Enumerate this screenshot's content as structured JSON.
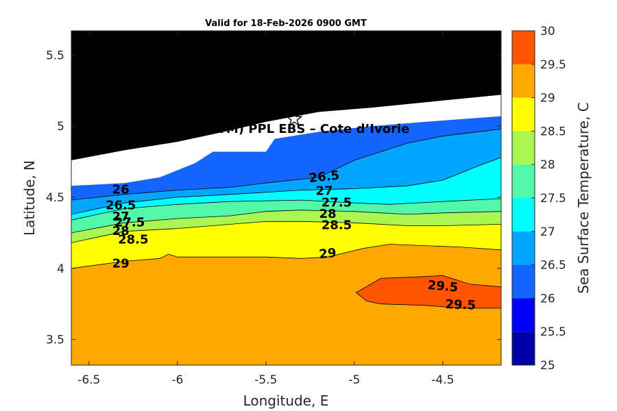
{
  "chart_data": {
    "type": "contour",
    "title": "Valid for 18-Feb-2026 0900 GMT",
    "xlabel": "Longitude, E",
    "ylabel": "Latitude, N",
    "xlim": [
      -6.6,
      -4.17
    ],
    "ylim": [
      3.32,
      5.67
    ],
    "xticks": [
      "-6.5",
      "-6",
      "-5.5",
      "-5",
      "-4.5"
    ],
    "xtick_values": [
      -6.5,
      -6,
      -5.5,
      -5,
      -4.5
    ],
    "yticks": [
      "3.5",
      "4",
      "4.5",
      "5",
      "5.5"
    ],
    "ytick_values": [
      3.5,
      4,
      4.5,
      5,
      5.5
    ],
    "site_label": "A (ONHYM) PPL EBS  – Cote d’Ivorie",
    "site_marker": {
      "lon": -5.34,
      "lat": 5.05,
      "symbol": "star"
    },
    "colorbar": {
      "label": "Sea Surface Temperature, C",
      "levels": [
        25,
        25.5,
        26,
        26.5,
        27,
        27.5,
        28,
        28.5,
        29,
        29.5,
        30
      ],
      "tick_labels": [
        "25",
        "25.5",
        "26",
        "26.5",
        "27",
        "27.5",
        "28",
        "28.5",
        "29",
        "29.5",
        "30"
      ],
      "colors": [
        "#0000a8",
        "#0000fa",
        "#1464ff",
        "#00a6ff",
        "#00ffff",
        "#52f7aa",
        "#aaf552",
        "#ffff00",
        "#ffa800",
        "#ff5500"
      ]
    },
    "land_color": "#000000",
    "land_boundary": [
      [
        -6.6,
        4.76
      ],
      [
        -6.3,
        4.83
      ],
      [
        -6.0,
        4.89
      ],
      [
        -5.7,
        4.97
      ],
      [
        -5.5,
        5.03
      ],
      [
        -5.2,
        5.1
      ],
      [
        -4.9,
        5.13
      ],
      [
        -4.5,
        5.18
      ],
      [
        -4.17,
        5.22
      ]
    ],
    "bands": [
      {
        "level": "26",
        "color": "#1464ff",
        "top": [
          [
            -6.6,
            4.58
          ],
          [
            -6.3,
            4.6
          ],
          [
            -6.1,
            4.64
          ],
          [
            -5.9,
            4.74
          ],
          [
            -5.8,
            4.82
          ],
          [
            -5.5,
            4.82
          ],
          [
            -5.45,
            4.91
          ],
          [
            -5.2,
            4.96
          ],
          [
            -4.9,
            5.0
          ],
          [
            -4.6,
            5.03
          ],
          [
            -4.17,
            5.07
          ]
        ]
      },
      {
        "level": "26.5",
        "color": "#00a6ff",
        "top": [
          [
            -6.6,
            4.48
          ],
          [
            -6.3,
            4.52
          ],
          [
            -6.0,
            4.55
          ],
          [
            -5.7,
            4.57
          ],
          [
            -5.5,
            4.6
          ],
          [
            -5.2,
            4.64
          ],
          [
            -5.0,
            4.76
          ],
          [
            -4.7,
            4.88
          ],
          [
            -4.5,
            4.93
          ],
          [
            -4.17,
            4.98
          ]
        ]
      },
      {
        "level": "27",
        "color": "#00ffff",
        "top": [
          [
            -6.6,
            4.38
          ],
          [
            -6.3,
            4.46
          ],
          [
            -6.0,
            4.5
          ],
          [
            -5.7,
            4.52
          ],
          [
            -5.3,
            4.55
          ],
          [
            -5.0,
            4.56
          ],
          [
            -4.7,
            4.58
          ],
          [
            -4.5,
            4.62
          ],
          [
            -4.3,
            4.72
          ],
          [
            -4.17,
            4.78
          ]
        ]
      },
      {
        "level": "27.5",
        "color": "#52f7aa",
        "top": [
          [
            -6.6,
            4.34
          ],
          [
            -6.3,
            4.42
          ],
          [
            -6.0,
            4.45
          ],
          [
            -5.7,
            4.47
          ],
          [
            -5.3,
            4.48
          ],
          [
            -5.0,
            4.46
          ],
          [
            -4.8,
            4.45
          ],
          [
            -4.5,
            4.47
          ],
          [
            -4.17,
            4.49
          ]
        ]
      },
      {
        "level": "28",
        "color": "#aaf552",
        "top": [
          [
            -6.6,
            4.25
          ],
          [
            -6.3,
            4.32
          ],
          [
            -6.0,
            4.35
          ],
          [
            -5.7,
            4.37
          ],
          [
            -5.5,
            4.4
          ],
          [
            -5.3,
            4.41
          ],
          [
            -5.0,
            4.4
          ],
          [
            -4.7,
            4.38
          ],
          [
            -4.5,
            4.39
          ],
          [
            -4.17,
            4.4
          ]
        ]
      },
      {
        "level": "28.5",
        "color": "#ffff00",
        "top": [
          [
            -6.6,
            4.18
          ],
          [
            -6.3,
            4.26
          ],
          [
            -6.0,
            4.28
          ],
          [
            -5.7,
            4.31
          ],
          [
            -5.5,
            4.33
          ],
          [
            -5.3,
            4.33
          ],
          [
            -5.0,
            4.32
          ],
          [
            -4.7,
            4.3
          ],
          [
            -4.5,
            4.3
          ],
          [
            -4.17,
            4.31
          ]
        ]
      },
      {
        "level": "29",
        "color": "#ffa800",
        "top": [
          [
            -6.6,
            4.0
          ],
          [
            -6.3,
            4.05
          ],
          [
            -6.1,
            4.07
          ],
          [
            -6.05,
            4.1
          ],
          [
            -6.0,
            4.08
          ],
          [
            -5.7,
            4.08
          ],
          [
            -5.5,
            4.08
          ],
          [
            -5.3,
            4.07
          ],
          [
            -5.15,
            4.08
          ],
          [
            -4.95,
            4.14
          ],
          [
            -4.8,
            4.17
          ],
          [
            -4.6,
            4.16
          ],
          [
            -4.4,
            4.15
          ],
          [
            -4.17,
            4.13
          ]
        ]
      }
    ],
    "warm_pool": {
      "level": "29.5",
      "color": "#ff5500",
      "outline": [
        [
          -4.99,
          3.83
        ],
        [
          -4.85,
          3.93
        ],
        [
          -4.65,
          3.94
        ],
        [
          -4.5,
          3.95
        ],
        [
          -4.35,
          3.89
        ],
        [
          -4.17,
          3.87
        ],
        [
          -4.17,
          3.72
        ],
        [
          -4.4,
          3.72
        ],
        [
          -4.6,
          3.74
        ],
        [
          -4.85,
          3.75
        ],
        [
          -4.93,
          3.77
        ]
      ]
    },
    "contour_labels": [
      {
        "text": "26",
        "lon": -6.32,
        "lat": 4.55,
        "angle": 0
      },
      {
        "text": "26.5",
        "lon": -6.32,
        "lat": 4.44,
        "angle": 0
      },
      {
        "text": "27",
        "lon": -6.32,
        "lat": 4.36,
        "angle": 0
      },
      {
        "text": "27.5",
        "lon": -6.27,
        "lat": 4.32,
        "angle": 0
      },
      {
        "text": "28",
        "lon": -6.32,
        "lat": 4.26,
        "angle": 0
      },
      {
        "text": "28.5",
        "lon": -6.25,
        "lat": 4.2,
        "angle": 0
      },
      {
        "text": "29",
        "lon": -6.32,
        "lat": 4.03,
        "angle": 0
      },
      {
        "text": "26.5",
        "lon": -5.17,
        "lat": 4.64,
        "angle": -6
      },
      {
        "text": "27",
        "lon": -5.17,
        "lat": 4.54,
        "angle": 0
      },
      {
        "text": "27.5",
        "lon": -5.1,
        "lat": 4.46,
        "angle": 0
      },
      {
        "text": "28",
        "lon": -5.15,
        "lat": 4.38,
        "angle": 0
      },
      {
        "text": "28.5",
        "lon": -5.1,
        "lat": 4.3,
        "angle": 0
      },
      {
        "text": "29",
        "lon": -5.15,
        "lat": 4.1,
        "angle": -6
      },
      {
        "text": "29.5",
        "lon": -4.5,
        "lat": 3.87,
        "angle": 5
      },
      {
        "text": "29.5",
        "lon": -4.4,
        "lat": 3.74,
        "angle": 2
      }
    ]
  }
}
